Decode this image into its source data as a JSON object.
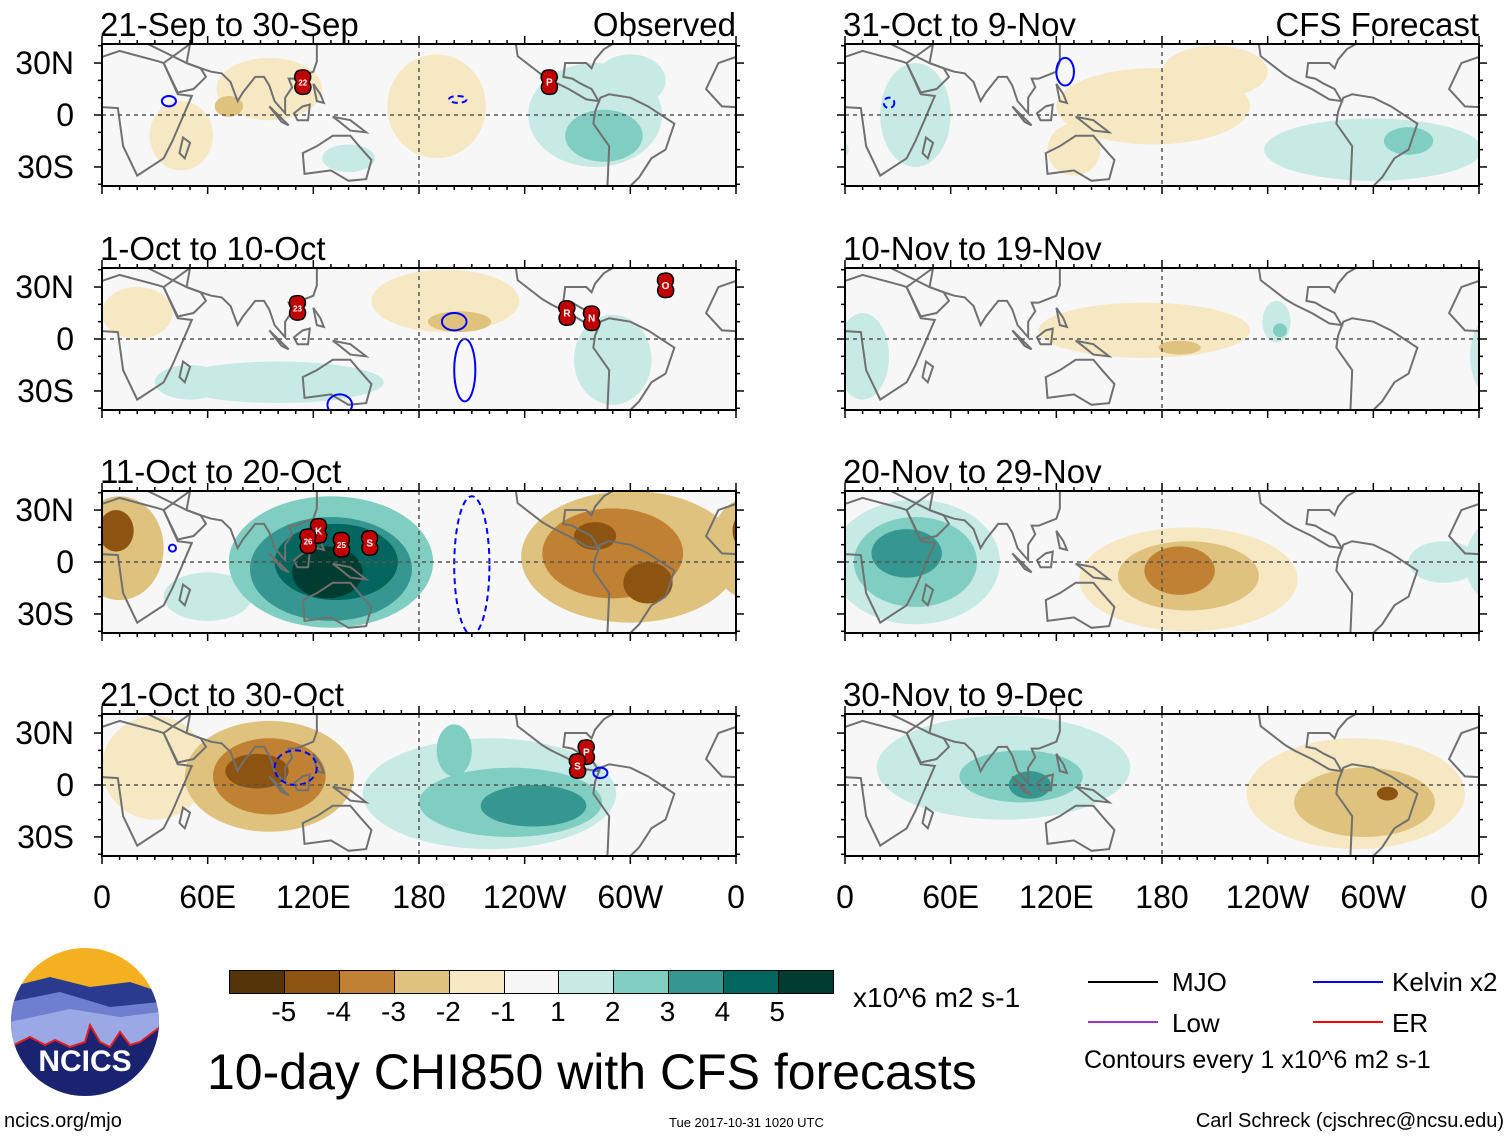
{
  "title": "10-day CHI850 with CFS forecasts",
  "header": {
    "observed_label": "Observed",
    "forecast_label": "CFS Forecast"
  },
  "lat_labels": [
    "30N",
    "0",
    "30S"
  ],
  "lon_labels": [
    "0",
    "60E",
    "120E",
    "180",
    "120W",
    "60W",
    "0"
  ],
  "colorbar": {
    "colors": [
      "#553309",
      "#8c5410",
      "#c08132",
      "#dfc27d",
      "#f6e8c3",
      "#f7f7f7",
      "#c7eae5",
      "#80cdc1",
      "#35978f",
      "#01665e",
      "#003c30"
    ],
    "labels": [
      "-5",
      "-4",
      "-3",
      "-2",
      "-1",
      "1",
      "2",
      "3",
      "4",
      "5"
    ],
    "units": "x10^6 m2 s-1"
  },
  "legend": {
    "items": [
      {
        "label": "MJO",
        "color": "#000000"
      },
      {
        "label": "Low",
        "color": "#9933cc"
      },
      {
        "label": "Kelvin x2",
        "color": "#0000ff"
      },
      {
        "label": "ER",
        "color": "#ff0000"
      }
    ],
    "contour_note": "Contours every 1 x10^6 m2 s-1"
  },
  "footer": {
    "url": "ncics.org/mjo",
    "timestamp": "Tue 2017-10-31 1020 UTC",
    "author": "Carl Schreck (cjschrec@ncsu.edu)",
    "logo_text": "NCICS"
  },
  "chart_data": [
    {
      "type": "heatmap",
      "title": "21-Sep to 30-Sep",
      "source": "Observed",
      "anomalies": [
        [
          95,
          15,
          30,
          18,
          -1
        ],
        [
          45,
          -12,
          18,
          20,
          -1
        ],
        [
          72,
          5,
          8,
          6,
          -2
        ],
        [
          190,
          5,
          28,
          30,
          -1
        ],
        [
          280,
          0,
          38,
          30,
          1
        ],
        [
          285,
          -12,
          22,
          15,
          2
        ],
        [
          140,
          -25,
          15,
          8,
          1
        ],
        [
          300,
          20,
          20,
          15,
          1
        ]
      ],
      "contours": [
        [
          38,
          8,
          4,
          3,
          "#0000ff",
          false
        ],
        [
          202,
          9,
          5,
          2,
          "#0000ff",
          true
        ]
      ],
      "storms": [
        [
          114,
          19,
          "22"
        ],
        [
          254,
          19,
          "P"
        ]
      ]
    },
    {
      "type": "heatmap",
      "title": "1-Oct to 10-Oct",
      "source": "Observed",
      "anomalies": [
        [
          195,
          22,
          42,
          18,
          -1
        ],
        [
          203,
          10,
          18,
          6,
          -2
        ],
        [
          20,
          15,
          20,
          15,
          -1
        ],
        [
          100,
          -25,
          60,
          12,
          1
        ],
        [
          290,
          -12,
          22,
          26,
          1
        ],
        [
          50,
          -25,
          20,
          10,
          1
        ]
      ],
      "contours": [
        [
          200,
          10,
          7,
          5,
          "#0000ff",
          false
        ],
        [
          206,
          -18,
          6,
          18,
          "#0000ff",
          false
        ],
        [
          135,
          -38,
          7,
          6,
          "#0000ff",
          false
        ]
      ],
      "storms": [
        [
          111,
          18,
          "23"
        ],
        [
          264,
          15,
          "R"
        ],
        [
          278,
          12,
          "N"
        ],
        [
          320,
          31,
          "O"
        ]
      ]
    },
    {
      "type": "heatmap",
      "title": "11-Oct to 20-Oct",
      "source": "Observed",
      "anomalies": [
        [
          300,
          3,
          62,
          38,
          -2
        ],
        [
          290,
          5,
          40,
          26,
          -3
        ],
        [
          280,
          15,
          12,
          8,
          -4
        ],
        [
          310,
          -12,
          14,
          12,
          -4
        ],
        [
          10,
          8,
          25,
          30,
          -2
        ],
        [
          8,
          18,
          10,
          12,
          -4
        ],
        [
          60,
          -20,
          25,
          14,
          1
        ],
        [
          130,
          0,
          58,
          38,
          2
        ],
        [
          130,
          -4,
          46,
          30,
          3
        ],
        [
          133,
          0,
          35,
          22,
          4
        ],
        [
          128,
          -6,
          20,
          15,
          5
        ]
      ],
      "contours": [
        [
          210,
          -2,
          10,
          40,
          "#0000ff",
          true
        ],
        [
          40,
          8,
          2,
          2,
          "#0000ff",
          false
        ]
      ],
      "storms": [
        [
          123,
          18,
          "K"
        ],
        [
          117,
          12,
          "26"
        ],
        [
          136,
          10,
          "25"
        ],
        [
          152,
          11,
          "S"
        ]
      ]
    },
    {
      "type": "heatmap",
      "title": "21-Oct to 30-Oct",
      "source": "Observed",
      "anomalies": [
        [
          30,
          10,
          30,
          30,
          -1
        ],
        [
          95,
          5,
          48,
          32,
          -2
        ],
        [
          95,
          5,
          32,
          22,
          -3
        ],
        [
          88,
          8,
          18,
          10,
          -4
        ],
        [
          220,
          -5,
          72,
          32,
          1
        ],
        [
          232,
          -10,
          52,
          20,
          2
        ],
        [
          245,
          -12,
          30,
          12,
          3
        ],
        [
          200,
          20,
          10,
          15,
          2
        ]
      ],
      "contours": [
        [
          110,
          10,
          12,
          10,
          "#0000ff",
          true
        ],
        [
          283,
          7,
          4,
          3,
          "#0000ff",
          false
        ]
      ],
      "storms": [
        [
          275,
          19,
          "P"
        ],
        [
          270,
          11,
          "S"
        ]
      ]
    },
    {
      "type": "heatmap",
      "title": "31-Oct to 9-Nov",
      "source": "CFS Forecast",
      "anomalies": [
        [
          175,
          5,
          55,
          22,
          -1
        ],
        [
          130,
          -20,
          15,
          15,
          -1
        ],
        [
          210,
          25,
          30,
          15,
          -1
        ],
        [
          300,
          -20,
          62,
          18,
          1
        ],
        [
          320,
          -15,
          14,
          8,
          2
        ],
        [
          40,
          0,
          20,
          30,
          1
        ]
      ],
      "contours": [
        [
          125,
          25,
          5,
          8,
          "#0000ff",
          false
        ],
        [
          25,
          7,
          3,
          3,
          "#0000ff",
          true
        ]
      ],
      "storms": []
    },
    {
      "type": "heatmap",
      "title": "10-Nov to 19-Nov",
      "source": "CFS Forecast",
      "anomalies": [
        [
          170,
          5,
          60,
          16,
          -1
        ],
        [
          190,
          -5,
          12,
          4,
          -2
        ],
        [
          245,
          10,
          8,
          12,
          1
        ],
        [
          247,
          5,
          4,
          4,
          2
        ],
        [
          10,
          -10,
          15,
          25,
          1
        ]
      ],
      "contours": [],
      "storms": []
    },
    {
      "type": "heatmap",
      "title": "20-Nov to 29-Nov",
      "source": "CFS Forecast",
      "anomalies": [
        [
          40,
          0,
          48,
          36,
          1
        ],
        [
          40,
          0,
          35,
          26,
          2
        ],
        [
          35,
          5,
          20,
          14,
          3
        ],
        [
          195,
          -10,
          62,
          30,
          -1
        ],
        [
          195,
          -8,
          40,
          20,
          -2
        ],
        [
          190,
          -5,
          20,
          14,
          -3
        ],
        [
          340,
          0,
          20,
          12,
          1
        ]
      ],
      "contours": [],
      "storms": []
    },
    {
      "type": "heatmap",
      "title": "30-Nov to 9-Dec",
      "source": "CFS Forecast",
      "anomalies": [
        [
          90,
          10,
          72,
          30,
          1
        ],
        [
          100,
          5,
          35,
          15,
          2
        ],
        [
          105,
          0,
          12,
          8,
          3
        ],
        [
          290,
          -5,
          62,
          32,
          -1
        ],
        [
          295,
          -10,
          40,
          20,
          -2
        ],
        [
          308,
          -5,
          6,
          4,
          -4
        ]
      ],
      "contours": [],
      "storms": []
    }
  ]
}
